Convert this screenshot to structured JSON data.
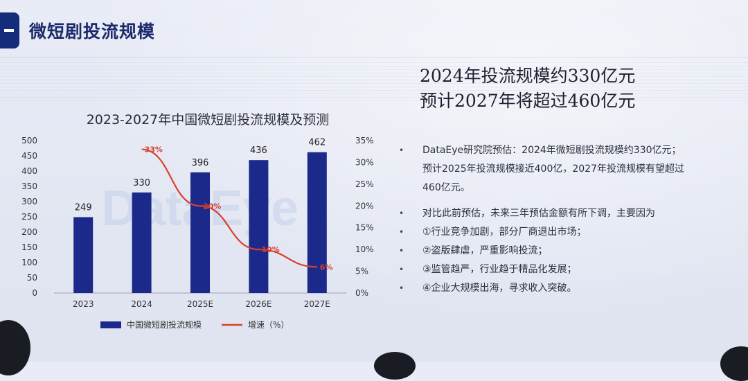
{
  "header": {
    "title": "微短剧投流规模"
  },
  "headline": {
    "line1": "2024年投流规模约330亿元",
    "line2": "预计2027年将超过460亿元"
  },
  "bullets": [
    "DataEye研究院预估：2024年微短剧投流规模约330亿元；",
    "预计2025年投流规模接近400亿，2027年投流规模有望超过",
    "460亿元。",
    "对比此前预估，未来三年预估金额有所下调，主要因为",
    "①行业竞争加剧，部分厂商退出市场；",
    "②盗版肆虐，严重影响投流；",
    "③监管趋严，行业趋于精品化发展；",
    "④企业大规模出海，寻求收入突破。"
  ],
  "bullet_dot": "•",
  "chart_data": {
    "type": "bar",
    "title": "2023-2027年中国微短剧投流规模及预测",
    "categories": [
      "2023",
      "2024",
      "2025E",
      "2026E",
      "2027E"
    ],
    "series": [
      {
        "name": "中国微短剧投流规模",
        "type": "bar",
        "values": [
          249,
          330,
          396,
          436,
          462
        ],
        "color": "#1b2a8a"
      },
      {
        "name": "增速（%）",
        "type": "line",
        "axis": "right",
        "values": [
          null,
          33,
          20,
          10,
          6
        ],
        "labels": [
          "",
          "33%",
          "20%",
          "10%",
          "6%"
        ],
        "color": "#d9402b"
      }
    ],
    "bar_labels": [
      "249",
      "330",
      "396",
      "436",
      "462"
    ],
    "ylim": [
      0,
      500
    ],
    "y_ticks": [
      "0",
      "50",
      "100",
      "150",
      "200",
      "250",
      "300",
      "350",
      "400",
      "450",
      "500"
    ],
    "y2lim": [
      0,
      35
    ],
    "y2_ticks": [
      "0%",
      "5%",
      "10%",
      "15%",
      "20%",
      "25%",
      "30%",
      "35%"
    ],
    "watermark": "DataEye",
    "legend_position": "bottom",
    "grid": false
  }
}
